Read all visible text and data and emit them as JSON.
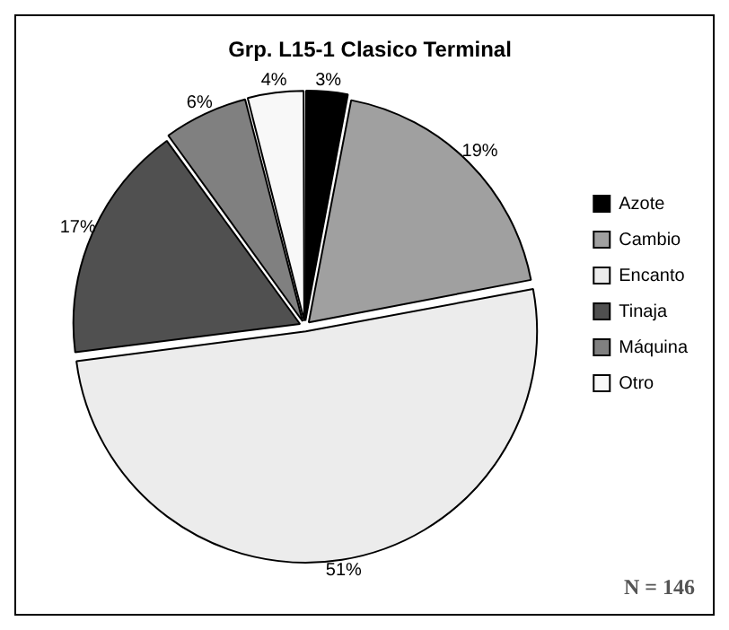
{
  "chart_data": {
    "type": "pie",
    "title": "Grp. L15-1 Clasico Terminal",
    "categories": [
      "Azote",
      "Cambio",
      "Encanto",
      "Tinaja",
      "Máquina",
      "Otro"
    ],
    "values": [
      3,
      19,
      51,
      17,
      6,
      4
    ],
    "colors": [
      "#000000",
      "#a0a0a0",
      "#ececec",
      "#505050",
      "#808080",
      "#f8f8f8"
    ],
    "value_labels": [
      "3%",
      "19%",
      "51%",
      "17%",
      "6%",
      "4%"
    ],
    "legend": "right",
    "annotations": [
      "N = 146"
    ]
  }
}
